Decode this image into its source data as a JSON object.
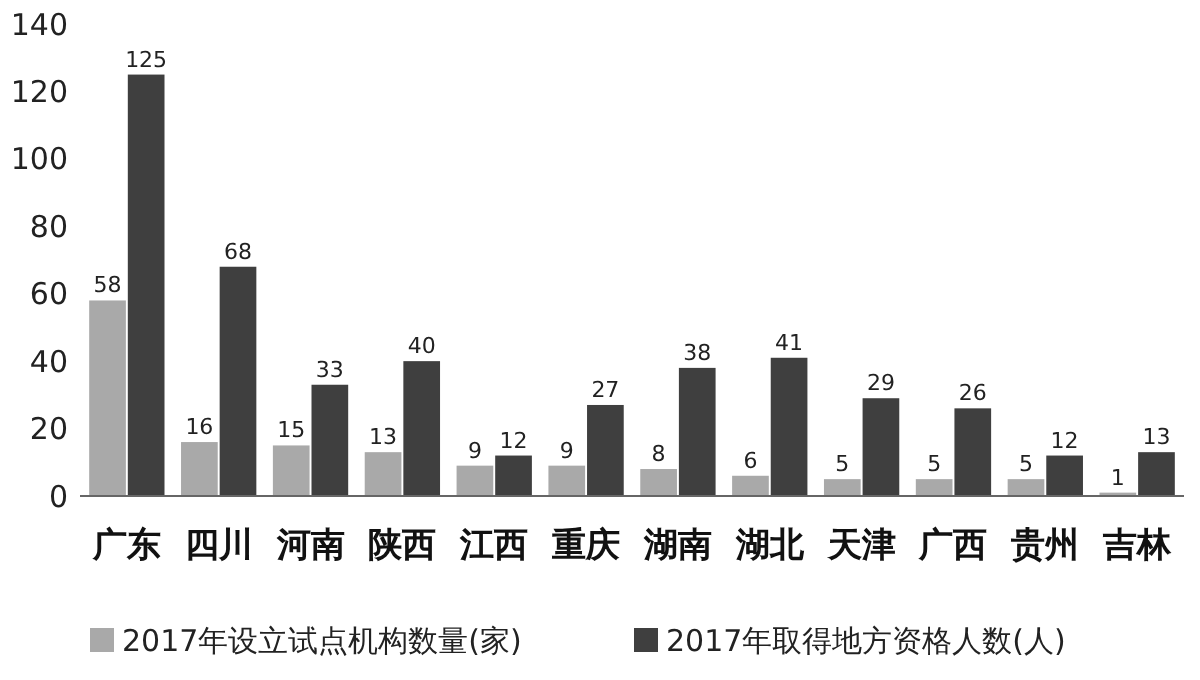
{
  "chart_data": {
    "type": "bar",
    "categories": [
      "广东",
      "四川",
      "河南",
      "陕西",
      "江西",
      "重庆",
      "湖南",
      "湖北",
      "天津",
      "广西",
      "贵州",
      "吉林"
    ],
    "series": [
      {
        "name": "2017年设立试点机构数量(家)",
        "color": "#a9a9a9",
        "values": [
          58,
          16,
          15,
          13,
          9,
          9,
          8,
          6,
          5,
          5,
          5,
          1
        ]
      },
      {
        "name": "2017年取得地方资格人数(人)",
        "color": "#3f3f3f",
        "values": [
          125,
          68,
          33,
          40,
          12,
          27,
          38,
          41,
          29,
          26,
          12,
          13
        ]
      }
    ],
    "ylim": [
      0,
      140
    ],
    "yticks": [
      0,
      20,
      40,
      60,
      80,
      100,
      120,
      140
    ],
    "data_labels": true,
    "legend": "bottom",
    "grid": false
  }
}
